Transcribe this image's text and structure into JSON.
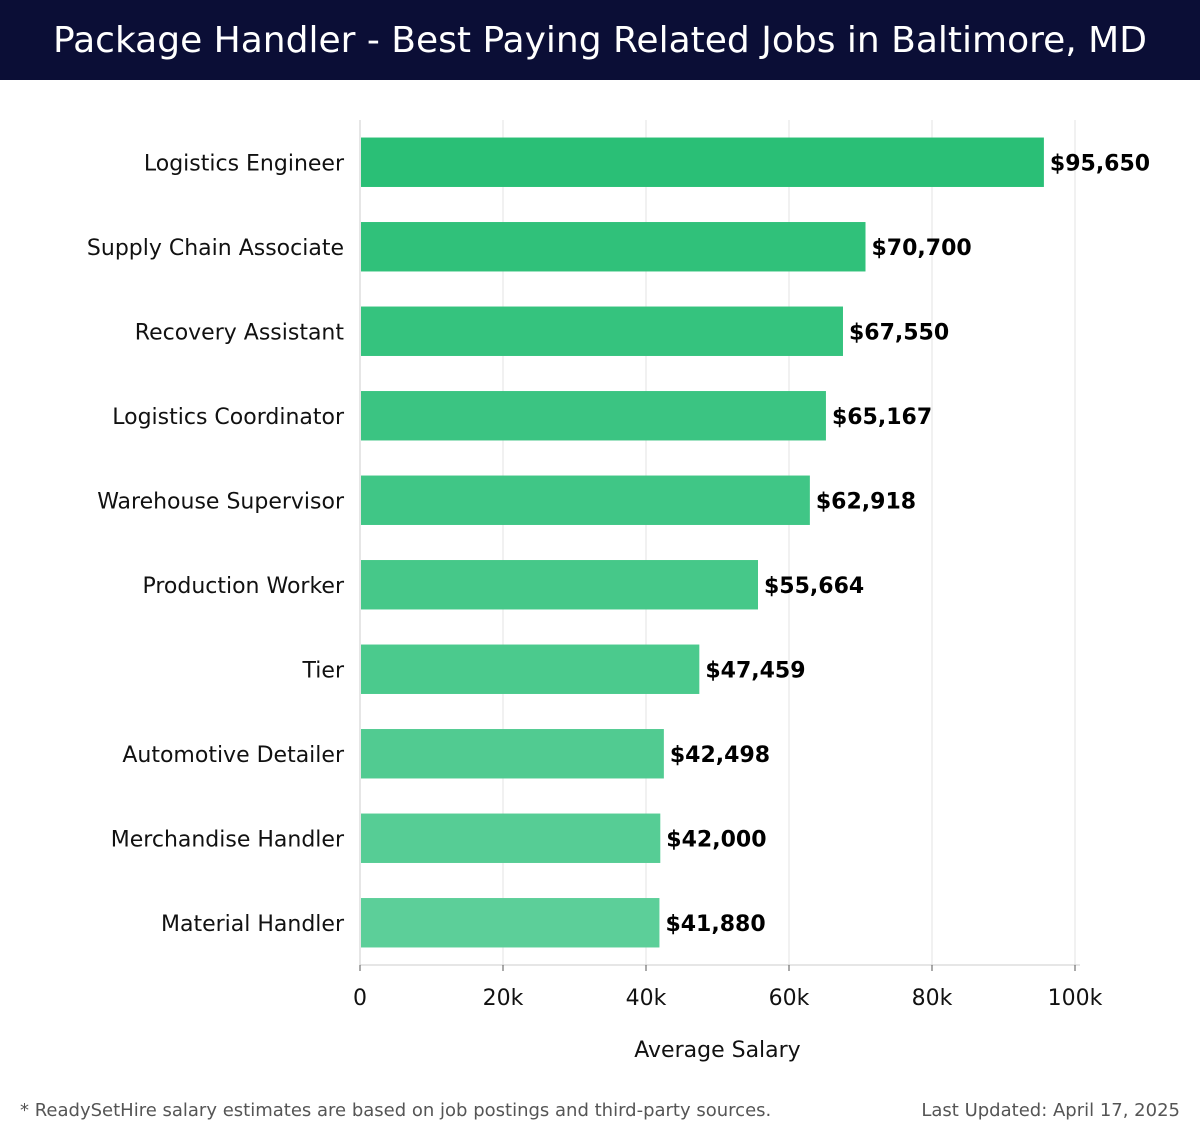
{
  "header": {
    "title": "Package Handler - Best Paying Related Jobs in Baltimore, MD"
  },
  "chart_data": {
    "type": "bar",
    "orientation": "horizontal",
    "title": "Package Handler - Best Paying Related Jobs in Baltimore, MD",
    "categories": [
      "Logistics Engineer",
      "Supply Chain Associate",
      "Recovery Assistant",
      "Logistics Coordinator",
      "Warehouse Supervisor",
      "Production Worker",
      "Tier",
      "Automotive Detailer",
      "Merchandise Handler",
      "Material Handler"
    ],
    "values": [
      95650,
      70700,
      67550,
      65167,
      62918,
      55664,
      47459,
      42498,
      42000,
      41880
    ],
    "value_labels": [
      "$95,650",
      "$70,700",
      "$67,550",
      "$65,167",
      "$62,918",
      "$55,664",
      "$47,459",
      "$42,498",
      "$42,000",
      "$41,880"
    ],
    "xlabel": "Average Salary",
    "ylabel": "",
    "xlim": [
      0,
      100000
    ],
    "xticks": [
      0,
      20000,
      40000,
      60000,
      80000,
      100000
    ],
    "xtick_labels": [
      "0",
      "20k",
      "40k",
      "60k",
      "80k",
      "100k"
    ],
    "grid": true,
    "bar_color_start": "#2abf76",
    "bar_color_end": "#5ccf99"
  },
  "footer": {
    "note": "* ReadySetHire salary estimates are based on job postings and third-party sources.",
    "updated": "Last Updated: April 17, 2025"
  }
}
